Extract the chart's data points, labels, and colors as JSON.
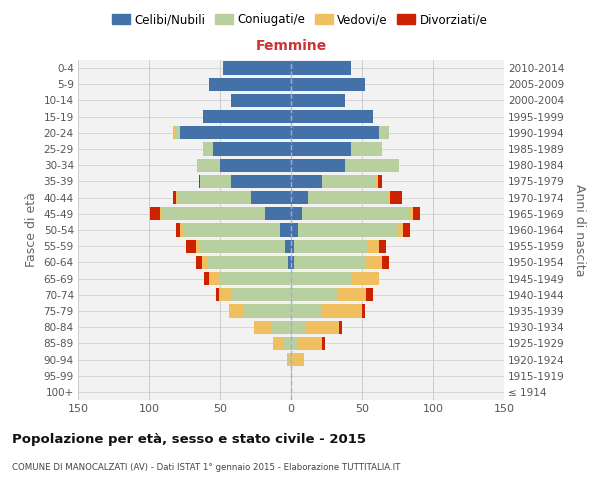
{
  "age_groups": [
    "100+",
    "95-99",
    "90-94",
    "85-89",
    "80-84",
    "75-79",
    "70-74",
    "65-69",
    "60-64",
    "55-59",
    "50-54",
    "45-49",
    "40-44",
    "35-39",
    "30-34",
    "25-29",
    "20-24",
    "15-19",
    "10-14",
    "5-9",
    "0-4"
  ],
  "birth_years": [
    "≤ 1914",
    "1915-1919",
    "1920-1924",
    "1925-1929",
    "1930-1934",
    "1935-1939",
    "1940-1944",
    "1945-1949",
    "1950-1954",
    "1955-1959",
    "1960-1964",
    "1965-1969",
    "1970-1974",
    "1975-1979",
    "1980-1984",
    "1985-1989",
    "1990-1994",
    "1995-1999",
    "2000-2004",
    "2005-2009",
    "2010-2014"
  ],
  "males_celibi": [
    0,
    0,
    0,
    0,
    0,
    0,
    0,
    0,
    2,
    4,
    8,
    18,
    28,
    42,
    50,
    55,
    78,
    62,
    42,
    58,
    48
  ],
  "males_coniugati": [
    0,
    0,
    1,
    5,
    14,
    34,
    42,
    50,
    57,
    60,
    68,
    73,
    52,
    22,
    16,
    7,
    4,
    0,
    0,
    0,
    0
  ],
  "males_vedovi": [
    0,
    0,
    2,
    8,
    12,
    10,
    9,
    8,
    4,
    3,
    2,
    1,
    1,
    0,
    0,
    0,
    1,
    0,
    0,
    0,
    0
  ],
  "males_divorziati": [
    0,
    0,
    0,
    0,
    0,
    0,
    2,
    3,
    4,
    7,
    3,
    7,
    2,
    1,
    0,
    0,
    0,
    0,
    0,
    0,
    0
  ],
  "females_nubili": [
    0,
    0,
    0,
    0,
    0,
    0,
    0,
    0,
    2,
    2,
    5,
    8,
    12,
    22,
    38,
    42,
    62,
    58,
    38,
    52,
    42
  ],
  "females_coniugate": [
    0,
    0,
    1,
    4,
    10,
    22,
    33,
    42,
    50,
    52,
    70,
    76,
    56,
    38,
    38,
    22,
    7,
    0,
    0,
    0,
    0
  ],
  "females_vedove": [
    0,
    1,
    8,
    18,
    24,
    28,
    20,
    20,
    12,
    8,
    4,
    2,
    2,
    1,
    0,
    0,
    0,
    0,
    0,
    0,
    0
  ],
  "females_divorziate": [
    0,
    0,
    0,
    2,
    2,
    2,
    5,
    0,
    5,
    5,
    5,
    5,
    8,
    3,
    0,
    0,
    0,
    0,
    0,
    0,
    0
  ],
  "colors": {
    "celibi": "#4472a8",
    "coniugati": "#b8cfa0",
    "vedovi": "#f0c060",
    "divorziati": "#cc2200"
  },
  "xlim": 150,
  "label_femmine": "Femmine",
  "ylabel_left": "Fasce di età",
  "ylabel_right": "Anni di nascita",
  "title": "Popolazione per età, sesso e stato civile - 2015",
  "subtitle": "COMUNE DI MANOCALZATI (AV) - Dati ISTAT 1° gennaio 2015 - Elaborazione TUTTITALIA.IT",
  "legend_labels": [
    "Celibi/Nubili",
    "Coniugati/e",
    "Vedovi/e",
    "Divorziati/e"
  ]
}
